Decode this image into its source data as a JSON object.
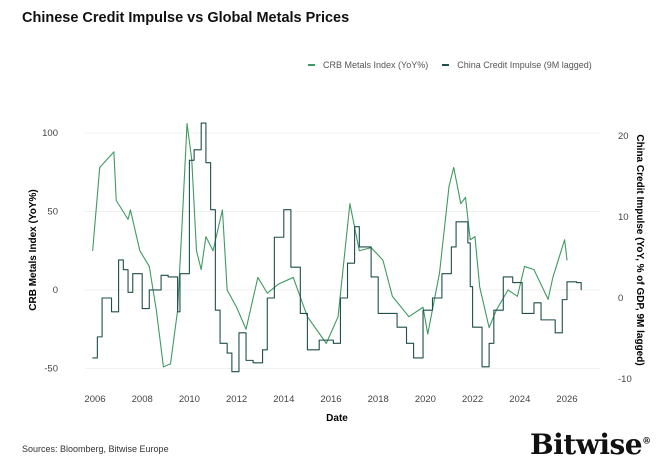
{
  "chart_data": {
    "type": "line",
    "title": "Chinese Credit Impulse vs Global Metals Prices",
    "xlabel": "Date",
    "ylabel_left": "CRB Metals Index (YoY%)",
    "ylabel_right": "China Credit Impulse (YoY, % of GDP, 9M lagged)",
    "xlim": [
      2005.9,
      2026.8
    ],
    "ylim_left": [
      -55,
      110
    ],
    "ylim_right": [
      -10,
      22
    ],
    "x_ticks": [
      "2006",
      "2008",
      "2010",
      "2012",
      "2014",
      "2016",
      "2018",
      "2020",
      "2022",
      "2024",
      "2026"
    ],
    "y_left_ticks": [
      "100",
      "50",
      "0",
      "-50"
    ],
    "y_right_ticks": [
      "20",
      "10",
      "0",
      "-10"
    ],
    "grid": "horizontal",
    "legend_position": "top-right",
    "series": [
      {
        "name": "CRB Metals Index (YoY%)",
        "axis": "left",
        "color": "#3f9a62",
        "style": "line",
        "x": [
          2005.9,
          2006.2,
          2006.8,
          2006.9,
          2007.4,
          2007.5,
          2007.9,
          2008.3,
          2008.6,
          2008.9,
          2009.2,
          2009.5,
          2009.7,
          2009.9,
          2010.1,
          2010.3,
          2010.5,
          2010.7,
          2011.0,
          2011.4,
          2011.6,
          2012.0,
          2012.4,
          2012.9,
          2013.3,
          2013.8,
          2014.4,
          2015.0,
          2015.8,
          2016.3,
          2016.8,
          2017.2,
          2017.7,
          2018.2,
          2018.6,
          2019.3,
          2019.9,
          2020.1,
          2020.6,
          2021.0,
          2021.2,
          2021.5,
          2021.7,
          2021.9,
          2022.1,
          2022.3,
          2022.7,
          2023.0,
          2023.5,
          2023.9,
          2024.2,
          2024.6,
          2025.2,
          2025.4,
          2025.9,
          2026.0
        ],
        "y": [
          25,
          78,
          88,
          57,
          45,
          51,
          25,
          15,
          -13,
          -49,
          -47,
          -13,
          45,
          106,
          83,
          25,
          13,
          34,
          25,
          51,
          0,
          -11,
          -25,
          8,
          -2,
          4,
          8,
          -17,
          -34,
          -17,
          55,
          25,
          27,
          19,
          -4,
          -17,
          -11,
          -28,
          11,
          66,
          78,
          55,
          59,
          32,
          34,
          2,
          -24,
          -13,
          0,
          -4,
          15,
          13,
          -6,
          8,
          32,
          19
        ]
      },
      {
        "name": "China Credit Impulse (9M lagged)",
        "axis": "right",
        "color": "#1f4f4a",
        "style": "step",
        "x": [
          2005.9,
          2006.1,
          2006.3,
          2006.7,
          2007.0,
          2007.2,
          2007.4,
          2007.6,
          2008.0,
          2008.3,
          2008.8,
          2009.1,
          2009.5,
          2009.6,
          2010.0,
          2010.2,
          2010.5,
          2010.7,
          2010.9,
          2011.1,
          2011.3,
          2011.6,
          2011.8,
          2012.1,
          2012.4,
          2012.7,
          2013.1,
          2013.3,
          2013.6,
          2014.0,
          2014.3,
          2014.7,
          2015.0,
          2015.5,
          2016.1,
          2016.4,
          2016.7,
          2017.0,
          2017.2,
          2017.7,
          2018.0,
          2018.4,
          2018.8,
          2019.2,
          2019.5,
          2019.9,
          2020.3,
          2020.7,
          2021.1,
          2021.3,
          2021.8,
          2021.9,
          2022.0,
          2022.4,
          2022.7,
          2022.9,
          2023.3,
          2023.7,
          2024.1,
          2024.6,
          2024.9,
          2025.5,
          2025.8,
          2026.0,
          2026.4,
          2026.6
        ],
        "y": [
          -7.4,
          -4.8,
          0,
          -1.7,
          4.7,
          3.5,
          0.7,
          3,
          -1.3,
          1,
          2.8,
          2.6,
          -1.7,
          3,
          17,
          18.3,
          21.6,
          16.7,
          10.9,
          -1.5,
          -5.6,
          -6.8,
          -9.1,
          -4.3,
          -7.7,
          -8,
          -6.4,
          0,
          7.5,
          10.9,
          3.8,
          -1.9,
          -6.4,
          -5.2,
          -5.6,
          0,
          4.3,
          8.8,
          6.3,
          2.6,
          -1.9,
          -1.9,
          -3.6,
          -5.6,
          -7.4,
          -1.5,
          0,
          3,
          6.3,
          9.4,
          6.8,
          1.4,
          -3.6,
          -8.5,
          -5.6,
          -1.5,
          2.6,
          1.9,
          -1.9,
          -0.6,
          -2.7,
          -4.3,
          -0.2,
          2,
          1.9,
          1
        ]
      }
    ]
  },
  "footer": {
    "source": "Sources: Bloomberg, Bitwise Europe",
    "logo": "Bitwise"
  }
}
